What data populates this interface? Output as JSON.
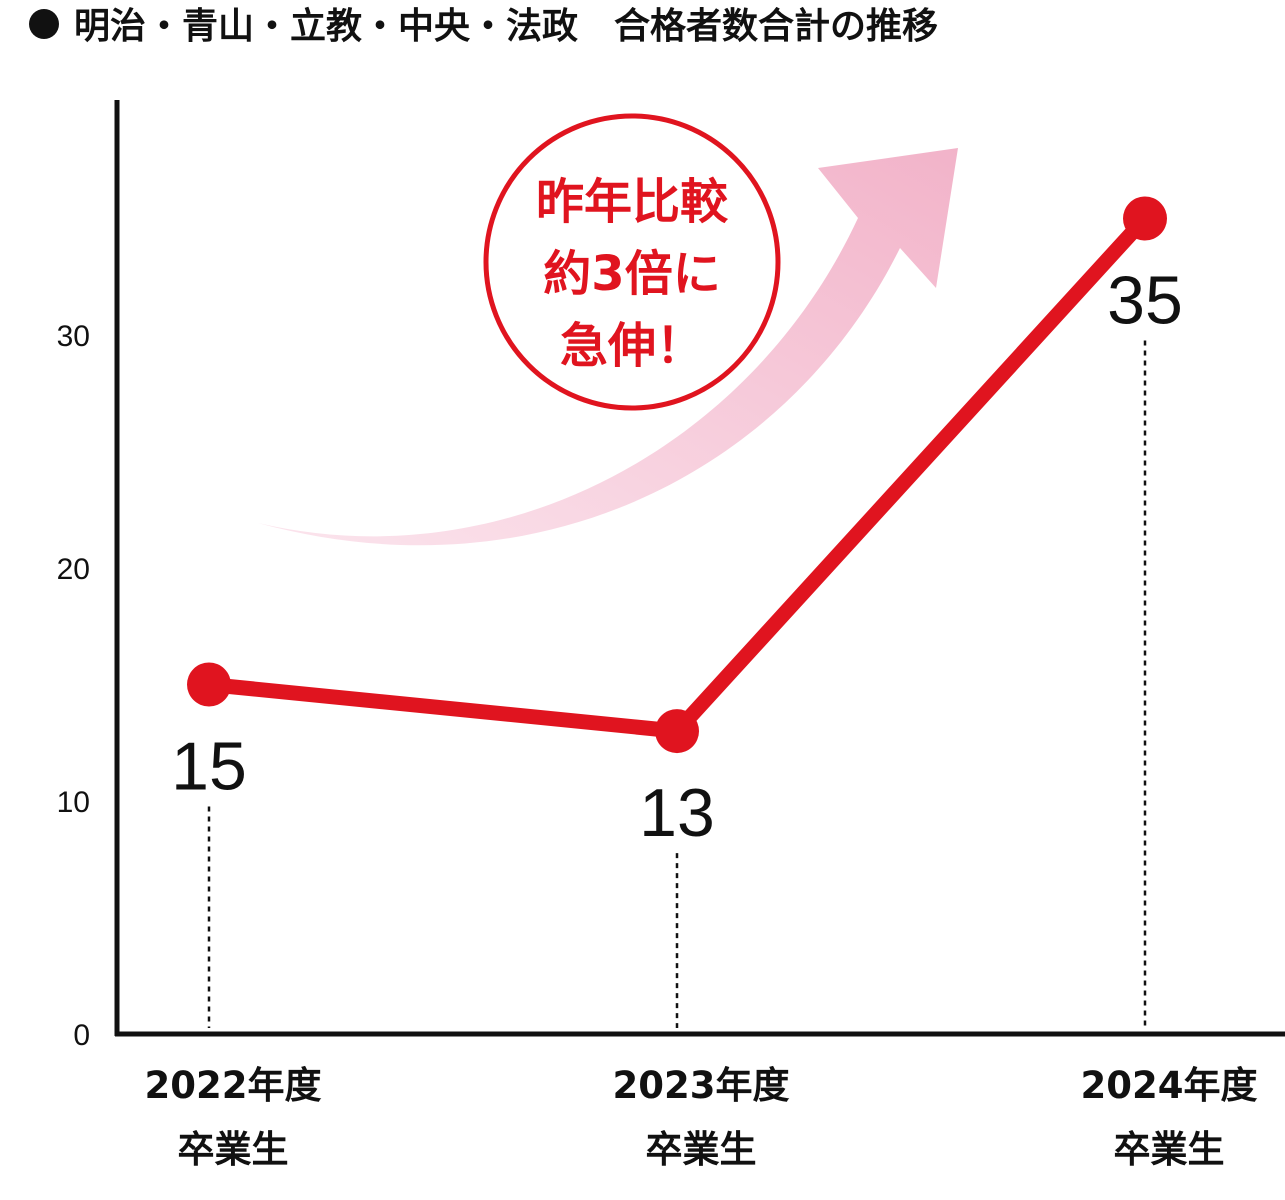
{
  "chart_data": {
    "type": "line",
    "title": "明治・青山・立教・中央・法政　合格者数合計の推移",
    "categories": [
      [
        "2022年度",
        "卒業生"
      ],
      [
        "2023年度",
        "卒業生"
      ],
      [
        "2024年度",
        "卒業生"
      ]
    ],
    "values": [
      15,
      13,
      35
    ],
    "ylim": [
      0,
      40
    ],
    "yticks": [
      0,
      10,
      20,
      30
    ],
    "grid": false,
    "legend": "none",
    "colors": {
      "line": "#e0141f",
      "highlight_label": "#e0141f",
      "label": "#111111",
      "axis": "#111111",
      "arrow": "#f4bfd2"
    },
    "highlight_index": 2,
    "annotation": {
      "lines": [
        "昨年比較",
        "約3倍に",
        "急伸！"
      ],
      "color": "#e0141f"
    }
  }
}
